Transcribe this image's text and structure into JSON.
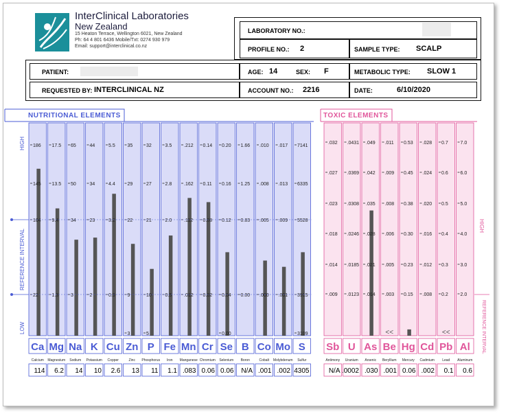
{
  "lab": {
    "name": "InterClinical Laboratories",
    "country": "New Zealand",
    "address": "15 Heaton Terrace, Wellington 6021, New Zealand",
    "phone": "Ph: 64 4 801 6436  Mobile/Txt: 0274 930 979",
    "email": "Email: support@interclinical.co.nz"
  },
  "form": {
    "laboratory_no_label": "LABORATORY NO.:",
    "profile_no_label": "PROFILE NO.:",
    "profile_no": "2",
    "sample_type_label": "SAMPLE TYPE:",
    "sample_type": "SCALP",
    "patient_label": "PATIENT:",
    "age_label": "AGE:",
    "age": "14",
    "sex_label": "SEX:",
    "sex": "F",
    "metabolic_type_label": "METABOLIC TYPE:",
    "metabolic_type": "SLOW 1",
    "requested_by_label": "REQUESTED BY:",
    "requested_by": "INTERCLINICAL NZ",
    "account_no_label": "ACCOUNT NO.:",
    "account_no": "2216",
    "date_label": "DATE:",
    "date": "6/10/2020"
  },
  "colors": {
    "nutritional": "#4a5bd4",
    "nutritional_fill": "#dadcf8",
    "toxic": "#e0559a",
    "toxic_fill": "#fbe3ef",
    "bar": "#555555"
  },
  "chart_data": [
    {
      "type": "bar",
      "title": "NUTRITIONAL ELEMENTS",
      "axis_labels": [
        "HIGH",
        "REFERENCE INTERVAL",
        "LOW"
      ],
      "categories": [
        "Ca",
        "Mg",
        "Na",
        "K",
        "Cu",
        "Zn",
        "P",
        "Fe",
        "Mn",
        "Cr",
        "Se",
        "B",
        "Co",
        "Mo",
        "S"
      ],
      "names": [
        "Calcium",
        "Magnesium",
        "Sodium",
        "Potassium",
        "Copper",
        "Zinc",
        "Phosphorus",
        "Iron",
        "Manganese",
        "Chromium",
        "Selenium",
        "Boron",
        "Cobalt",
        "Molybdenum",
        "Sulfur"
      ],
      "results": [
        "114",
        "6.2",
        "14",
        "10",
        "2.6",
        "13",
        "11",
        "1.1",
        ".083",
        "0.06",
        "0.06",
        "N/A",
        ".001",
        ".002",
        "4305"
      ],
      "values": [
        114,
        6.2,
        14,
        10,
        2.6,
        13,
        11,
        1.1,
        0.083,
        0.06,
        0.06,
        0,
        0.001,
        0.002,
        4305
      ],
      "scale_rows": [
        [
          "186",
          "17.5",
          "65",
          "44",
          "5.5",
          "35",
          "32",
          "3.5",
          ".212",
          "0.14",
          "0.20",
          "1.66",
          ".010",
          ".017",
          "7141"
        ],
        [
          "145",
          "13.5",
          "50",
          "34",
          "4.4",
          "29",
          "27",
          "2.8",
          ".162",
          "0.11",
          "0.16",
          "1.25",
          ".008",
          ".013",
          "6335"
        ],
        [
          "104",
          "9.4",
          "34",
          "23",
          "3.2",
          "22",
          "21",
          "2.0",
          ".112",
          "0.08",
          "0.12",
          "0.83",
          ".005",
          ".009",
          "5528"
        ],
        [
          "22",
          "1.3",
          "3",
          "2",
          "0.9",
          "9",
          "10",
          "0.5",
          ".012",
          "0.02",
          "0.04",
          "0.00",
          ".000",
          ".001",
          "3915"
        ]
      ],
      "low_labels": [
        {
          "index": 5,
          "text": "3"
        },
        {
          "index": 6,
          "text": "5"
        },
        {
          "index": 10,
          "text": "0.00"
        },
        {
          "index": 14,
          "text": "3109"
        }
      ],
      "bar_levels": [
        0.8,
        0.61,
        0.46,
        0.47,
        0.68,
        0.44,
        0.32,
        0.48,
        0.66,
        0.64,
        0.4,
        0.0,
        0.36,
        0.33,
        0.4
      ]
    },
    {
      "type": "bar",
      "title": "TOXIC ELEMENTS",
      "axis_labels": [
        "HIGH",
        "REFERENCE INTERVAL"
      ],
      "categories": [
        "Sb",
        "U",
        "As",
        "Be",
        "Hg",
        "Cd",
        "Pb",
        "Al"
      ],
      "names": [
        "Antimony",
        "Uranium",
        "Arsenic",
        "Beryllium",
        "Mercury",
        "Cadmium",
        "Lead",
        "Aluminum"
      ],
      "results": [
        "N/A",
        ".0002",
        ".030",
        ".001",
        "0.06",
        ".002",
        "0.1",
        "0.6"
      ],
      "values": [
        0,
        0.0002,
        0.03,
        0.001,
        0.06,
        0.002,
        0.1,
        0.6
      ],
      "scale_rows": [
        [
          ".032",
          ".0431",
          ".049",
          ".011",
          "0.53",
          ".028",
          "0.7",
          "7.0"
        ],
        [
          ".027",
          ".0369",
          ".042",
          ".009",
          "0.45",
          ".024",
          "0.6",
          "6.0"
        ],
        [
          ".023",
          ".0308",
          ".035",
          ".008",
          "0.38",
          ".020",
          "0.5",
          "5.0"
        ],
        [
          ".018",
          ".0246",
          ".028",
          ".006",
          "0.30",
          ".016",
          "0.4",
          "4.0"
        ],
        [
          ".014",
          ".0185",
          ".021",
          ".005",
          "0.23",
          ".012",
          "0.3",
          "3.0"
        ],
        [
          ".009",
          ".0123",
          ".014",
          ".003",
          "0.15",
          ".008",
          "0.2",
          "2.0"
        ]
      ],
      "low_markers": [
        {
          "index": 3,
          "text": "<<"
        },
        {
          "index": 6,
          "text": "<<"
        }
      ],
      "bar_levels": [
        0.0,
        0.0,
        0.6,
        0.0,
        0.03,
        0.0,
        0.0,
        0.0
      ]
    }
  ]
}
